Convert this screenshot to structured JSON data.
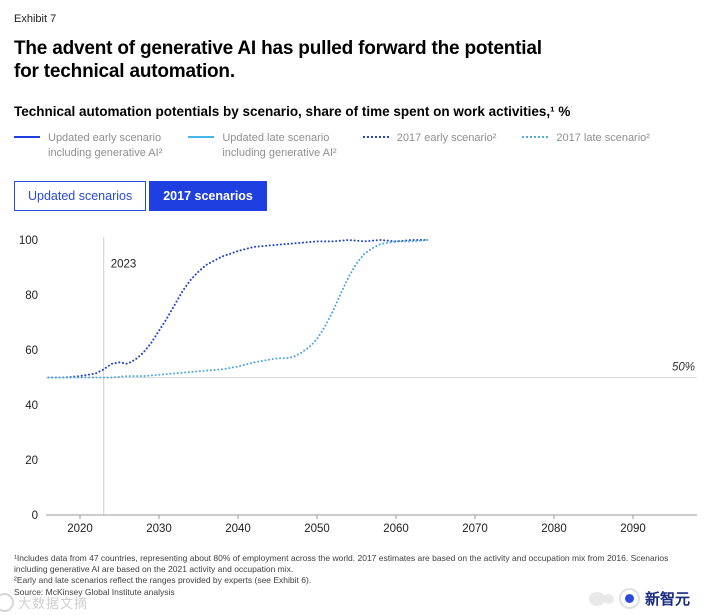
{
  "page": {
    "exhibit_label": "Exhibit 7",
    "title_line1": "The advent of generative AI has pulled forward the potential",
    "title_line2": "for technical automation.",
    "subtitle": "Technical automation potentials by scenario, share of time spent on work activities,¹ %"
  },
  "colors": {
    "accent_blue": "#1f3fe0",
    "solid_light_blue": "#45b6e8",
    "dotted_dark_blue": "#2247c9",
    "dotted_light_blue": "#54a8e0"
  },
  "legend": {
    "items": [
      {
        "label_line1": "Updated early scenario",
        "label_line2": "including generative AI²",
        "style": "solid-dark"
      },
      {
        "label_line1": "Updated late scenario",
        "label_line2": "including generative AI²",
        "style": "solid-light"
      },
      {
        "label_line1": "2017 early scenario²",
        "label_line2": "",
        "style": "dotted-dark"
      },
      {
        "label_line1": "2017 late scenario²",
        "label_line2": "",
        "style": "dotted-light"
      }
    ]
  },
  "buttons": {
    "updated": "Updated scenarios",
    "y2017": "2017 scenarios"
  },
  "chart_data": {
    "type": "line",
    "title": "Technical automation potentials by scenario",
    "ylabel": "share of time spent on work activities, %",
    "xlim": [
      2016,
      2097
    ],
    "ylim": [
      0,
      100
    ],
    "x_ticks": [
      2020,
      2030,
      2040,
      2050,
      2060,
      2070,
      2080,
      2090
    ],
    "y_ticks": [
      0,
      20,
      40,
      60,
      80,
      100
    ],
    "grid": "off",
    "legend_position": "top",
    "reference_line": {
      "y": 50,
      "label": "50%"
    },
    "vertical_marker": {
      "x": 2023,
      "label": "2023"
    },
    "series": [
      {
        "name": "2017 early scenario",
        "color": "#2247c9",
        "dash": "dotted",
        "points": [
          [
            2016,
            50
          ],
          [
            2018,
            50
          ],
          [
            2020,
            50.5
          ],
          [
            2021,
            51
          ],
          [
            2022,
            51.5
          ],
          [
            2023,
            53
          ],
          [
            2024,
            55
          ],
          [
            2025,
            55.5
          ],
          [
            2026,
            55
          ],
          [
            2027,
            56.5
          ],
          [
            2028,
            59
          ],
          [
            2029,
            62.5
          ],
          [
            2030,
            67
          ],
          [
            2031,
            71.5
          ],
          [
            2032,
            76.5
          ],
          [
            2033,
            81.5
          ],
          [
            2034,
            85.5
          ],
          [
            2035,
            88.5
          ],
          [
            2036,
            91
          ],
          [
            2037,
            92.5
          ],
          [
            2038,
            94
          ],
          [
            2039,
            95
          ],
          [
            2040,
            96
          ],
          [
            2042,
            97.5
          ],
          [
            2044,
            98
          ],
          [
            2046,
            98.5
          ],
          [
            2048,
            99
          ],
          [
            2050,
            99.5
          ],
          [
            2052,
            99.5
          ],
          [
            2054,
            100
          ],
          [
            2056,
            99.5
          ],
          [
            2058,
            100
          ],
          [
            2060,
            99.5
          ],
          [
            2062,
            100
          ],
          [
            2064,
            100
          ]
        ]
      },
      {
        "name": "2017 late scenario",
        "color": "#54a8e0",
        "dash": "dotted",
        "points": [
          [
            2016,
            50
          ],
          [
            2018,
            50
          ],
          [
            2020,
            50
          ],
          [
            2022,
            50
          ],
          [
            2024,
            50
          ],
          [
            2026,
            50.5
          ],
          [
            2028,
            50.5
          ],
          [
            2030,
            51
          ],
          [
            2032,
            51.5
          ],
          [
            2034,
            52
          ],
          [
            2036,
            52.5
          ],
          [
            2038,
            53
          ],
          [
            2040,
            54
          ],
          [
            2042,
            55.5
          ],
          [
            2043,
            56
          ],
          [
            2044,
            56.5
          ],
          [
            2045,
            57
          ],
          [
            2046,
            57
          ],
          [
            2047,
            57.5
          ],
          [
            2048,
            59
          ],
          [
            2049,
            61
          ],
          [
            2050,
            64
          ],
          [
            2051,
            68.5
          ],
          [
            2052,
            74
          ],
          [
            2053,
            80.5
          ],
          [
            2054,
            86.5
          ],
          [
            2055,
            91.5
          ],
          [
            2056,
            95
          ],
          [
            2057,
            97
          ],
          [
            2058,
            98.5
          ],
          [
            2059,
            99
          ],
          [
            2060,
            99.5
          ],
          [
            2062,
            99.5
          ],
          [
            2064,
            100
          ]
        ]
      }
    ]
  },
  "footnotes": {
    "note1": "¹Includes data from 47 countries, representing about 80% of employment across the world. 2017 estimates are based on the activity and occupation mix from 2016. Scenarios including generative AI are based on the 2021 activity and occupation mix.",
    "note2": "²Early and late scenarios reflect the ranges provided by experts (see Exhibit 6).",
    "source": "Source: McKinsey Global Institute analysis"
  },
  "watermarks": {
    "bottom_left": "大数据文摘",
    "bottom_right": "新智元"
  }
}
